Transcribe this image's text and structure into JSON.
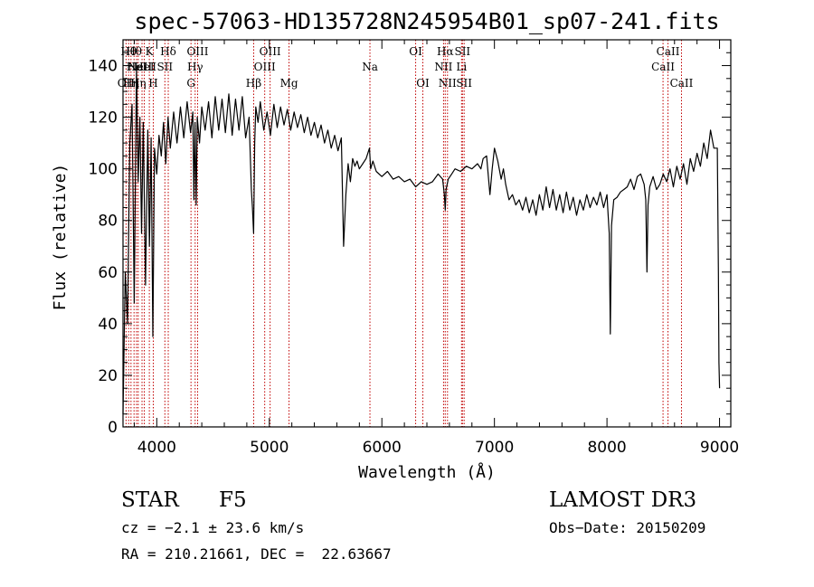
{
  "chart_data": {
    "type": "line",
    "title": "spec-57063-HD135728N245954B01_sp07-241.fits",
    "xlabel": "Wavelength (Å)",
    "ylabel": "Flux (relative)",
    "xlim": [
      3700,
      9100
    ],
    "ylim": [
      0,
      150
    ],
    "xticks": [
      4000,
      5000,
      6000,
      7000,
      8000,
      9000
    ],
    "yticks": [
      0,
      20,
      40,
      60,
      80,
      100,
      120,
      140
    ],
    "grid": false,
    "series": [
      {
        "name": "flux",
        "x": [
          3700,
          3720,
          3740,
          3760,
          3780,
          3800,
          3820,
          3835,
          3850,
          3865,
          3880,
          3900,
          3920,
          3935,
          3950,
          3965,
          3980,
          4000,
          4020,
          4040,
          4060,
          4080,
          4100,
          4120,
          4150,
          4180,
          4210,
          4240,
          4270,
          4300,
          4320,
          4330,
          4340,
          4350,
          4360,
          4380,
          4400,
          4430,
          4460,
          4490,
          4520,
          4550,
          4580,
          4610,
          4640,
          4670,
          4700,
          4730,
          4760,
          4790,
          4820,
          4840,
          4850,
          4860,
          4870,
          4880,
          4900,
          4920,
          4950,
          4980,
          5010,
          5040,
          5070,
          5100,
          5130,
          5160,
          5190,
          5220,
          5250,
          5280,
          5310,
          5340,
          5370,
          5400,
          5430,
          5460,
          5490,
          5520,
          5550,
          5580,
          5610,
          5640,
          5660,
          5680,
          5700,
          5720,
          5740,
          5760,
          5780,
          5800,
          5830,
          5860,
          5890,
          5900,
          5920,
          5950,
          6000,
          6050,
          6100,
          6150,
          6200,
          6250,
          6300,
          6350,
          6400,
          6450,
          6500,
          6540,
          6555,
          6563,
          6570,
          6590,
          6620,
          6650,
          6700,
          6750,
          6800,
          6850,
          6880,
          6900,
          6930,
          6960,
          6980,
          7000,
          7030,
          7060,
          7080,
          7100,
          7130,
          7160,
          7190,
          7220,
          7250,
          7280,
          7310,
          7340,
          7370,
          7400,
          7430,
          7460,
          7490,
          7520,
          7550,
          7580,
          7610,
          7640,
          7670,
          7700,
          7730,
          7760,
          7790,
          7820,
          7850,
          7880,
          7910,
          7940,
          7970,
          8000,
          8010,
          8020,
          8030,
          8040,
          8060,
          8090,
          8120,
          8150,
          8180,
          8210,
          8240,
          8270,
          8300,
          8330,
          8345,
          8355,
          8365,
          8380,
          8410,
          8440,
          8470,
          8500,
          8530,
          8560,
          8590,
          8620,
          8650,
          8680,
          8710,
          8740,
          8770,
          8800,
          8830,
          8860,
          8890,
          8920,
          8950,
          8980,
          8990,
          8995,
          9000
        ],
        "values": [
          5,
          60,
          40,
          110,
          125,
          48,
          140,
          95,
          120,
          75,
          118,
          55,
          115,
          70,
          112,
          35,
          108,
          98,
          113,
          105,
          118,
          102,
          120,
          108,
          122,
          110,
          124,
          112,
          126,
          114,
          122,
          88,
          118,
          86,
          120,
          110,
          124,
          115,
          126,
          112,
          128,
          115,
          127,
          114,
          129,
          113,
          127,
          115,
          128,
          112,
          120,
          92,
          85,
          75,
          110,
          124,
          118,
          126,
          115,
          122,
          113,
          125,
          116,
          124,
          117,
          123,
          115,
          122,
          116,
          121,
          114,
          120,
          113,
          118,
          112,
          117,
          110,
          115,
          108,
          113,
          107,
          112,
          70,
          90,
          102,
          95,
          104,
          101,
          103,
          100,
          102,
          104,
          108,
          100,
          103,
          99,
          97,
          99,
          96,
          97,
          95,
          96,
          93,
          95,
          94,
          95,
          98,
          96,
          90,
          84,
          92,
          96,
          98,
          100,
          99,
          101,
          100,
          102,
          100,
          104,
          105,
          90,
          100,
          108,
          103,
          96,
          100,
          94,
          88,
          90,
          86,
          88,
          84,
          89,
          83,
          88,
          82,
          90,
          84,
          93,
          85,
          92,
          84,
          90,
          83,
          91,
          84,
          89,
          82,
          88,
          84,
          90,
          85,
          89,
          86,
          91,
          85,
          90,
          82,
          75,
          36,
          78,
          88,
          89,
          91,
          92,
          93,
          96,
          92,
          97,
          98,
          94,
          88,
          60,
          86,
          93,
          97,
          92,
          94,
          98,
          95,
          100,
          93,
          101,
          96,
          102,
          94,
          104,
          99,
          106,
          101,
          110,
          104,
          115,
          108,
          108,
          60,
          25,
          15
        ]
      }
    ],
    "lines": [
      {
        "wave": 3727,
        "label": "OII",
        "row": 3
      },
      {
        "wave": 3750,
        "label": "Hθ",
        "row": 1
      },
      {
        "wave": 3771,
        "label": "Hη",
        "row": 3
      },
      {
        "wave": 3798,
        "label": "Hθ",
        "row": 1
      },
      {
        "wave": 3820,
        "label": "HeI",
        "row": 2
      },
      {
        "wave": 3835,
        "label": "Hη",
        "row": 3
      },
      {
        "wave": 3869,
        "label": "NeIII",
        "row": 2
      },
      {
        "wave": 3889,
        "label": "HeI",
        "row": 2
      },
      {
        "wave": 3934,
        "label": "K",
        "row": 1
      },
      {
        "wave": 3969,
        "label": "H",
        "row": 3
      },
      {
        "wave": 4072,
        "label": "SII",
        "row": 2
      },
      {
        "wave": 4102,
        "label": "Hδ",
        "row": 1
      },
      {
        "wave": 4304,
        "label": "G",
        "row": 3
      },
      {
        "wave": 4341,
        "label": "Hγ",
        "row": 2
      },
      {
        "wave": 4363,
        "label": "OIII",
        "row": 1
      },
      {
        "wave": 4861,
        "label": "Hβ",
        "row": 3
      },
      {
        "wave": 4959,
        "label": "OIII",
        "row": 2
      },
      {
        "wave": 5007,
        "label": "OIII",
        "row": 1
      },
      {
        "wave": 5175,
        "label": "Mg",
        "row": 3
      },
      {
        "wave": 5894,
        "label": "Na",
        "row": 2
      },
      {
        "wave": 6300,
        "label": "OI",
        "row": 1
      },
      {
        "wave": 6364,
        "label": "OI",
        "row": 3
      },
      {
        "wave": 6548,
        "label": "NII",
        "row": 2
      },
      {
        "wave": 6563,
        "label": "Hα",
        "row": 1
      },
      {
        "wave": 6583,
        "label": "NII",
        "row": 3
      },
      {
        "wave": 6708,
        "label": "Li",
        "row": 2
      },
      {
        "wave": 6716,
        "label": "SII",
        "row": 1
      },
      {
        "wave": 6731,
        "label": "SII",
        "row": 3
      },
      {
        "wave": 8498,
        "label": "CaII",
        "row": 2
      },
      {
        "wave": 8542,
        "label": "CaII",
        "row": 1
      },
      {
        "wave": 8662,
        "label": "CaII",
        "row": 3
      }
    ],
    "line_color": "#c00000"
  },
  "info": {
    "object_class": "STAR",
    "subclass": "F5",
    "survey": "LAMOST DR3",
    "cz": "cz = −2.1 ± 23.6 km/s",
    "obs_date": "Obs−Date: 20150209",
    "coords": "RA = 210.21661, DEC =  22.63667"
  }
}
